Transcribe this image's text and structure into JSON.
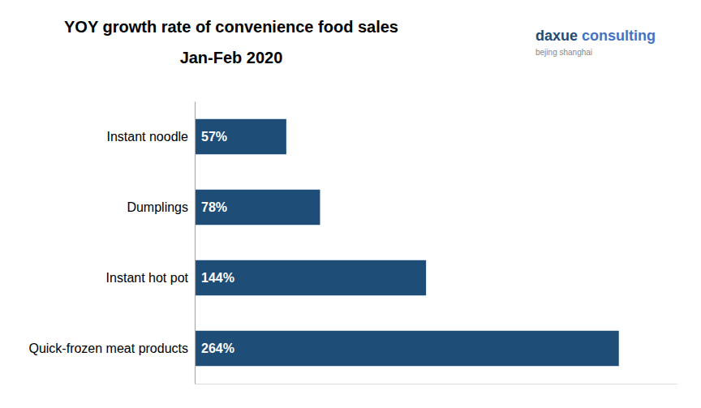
{
  "chart_data": {
    "type": "bar",
    "orientation": "horizontal",
    "title": "YOY growth rate of convenience food sales",
    "subtitle": "Jan-Feb 2020",
    "categories": [
      "Quick-frozen meat products",
      "Instant hot pot",
      "Dumplings",
      "Instant noodle"
    ],
    "values": [
      264,
      144,
      78,
      57
    ],
    "value_labels": [
      "264%",
      "144%",
      "78%",
      "57%"
    ],
    "data_labels": true,
    "color": "#1e4d78",
    "xlim": [
      0,
      300
    ],
    "xticks": [],
    "tick_labels": "y",
    "grid": false,
    "annotations": [
      {
        "text": "daxue",
        "color": "#1e4d78"
      },
      {
        "text": "consulting",
        "color": "#4472c4"
      },
      {
        "text": "bejing shanghai",
        "color": "#888888"
      }
    ]
  }
}
